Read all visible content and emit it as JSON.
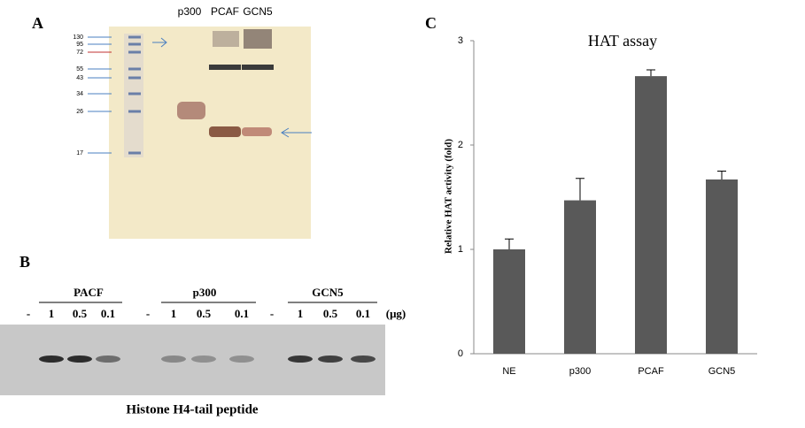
{
  "panel_a": {
    "label": "A",
    "lanes": [
      "p300",
      "PCAF",
      "GCN5"
    ],
    "markers": [
      "130",
      "95",
      "72",
      "55",
      "43",
      "34",
      "26",
      "17"
    ]
  },
  "panel_b": {
    "label": "B",
    "groups": [
      {
        "name": "PACF",
        "doses": [
          "1",
          "0.5",
          "0.1"
        ]
      },
      {
        "name": "p300",
        "doses": [
          "1",
          "0.5",
          "0.1"
        ]
      },
      {
        "name": "GCN5",
        "doses": [
          "1",
          "0.5",
          "0.1"
        ]
      }
    ],
    "blank": "-",
    "unit": "(μg)",
    "caption": "Histone H4-tail peptide"
  },
  "chart_data": {
    "type": "bar",
    "panel_label": "C",
    "title": "HAT assay",
    "y_label": "Relative HAT activity (fold)",
    "categories": [
      "NE",
      "p300",
      "PCAF",
      "GCN5"
    ],
    "values": [
      1,
      1.47,
      2.66,
      1.67
    ],
    "errors": [
      0.1,
      0.21,
      0.06,
      0.08
    ],
    "color": "#595959",
    "ylim": [
      0,
      3
    ],
    "yticks": [
      0,
      1,
      2,
      3
    ]
  }
}
